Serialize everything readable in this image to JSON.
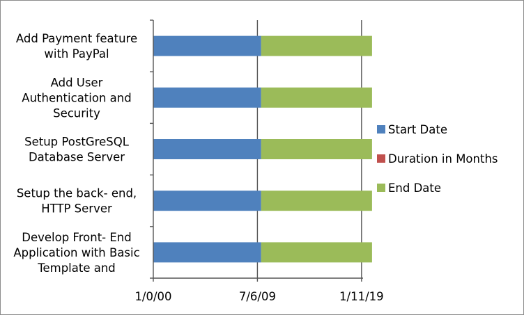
{
  "chart_data": {
    "type": "bar",
    "orientation": "horizontal",
    "stacked": true,
    "categories": [
      "Add Payment feature with PayPal",
      "Add User Authentication and Security",
      "Setup PostGreSQL Database Server",
      "Setup the back- end, HTTP Server",
      "Develop Front- End Application with Basic Template and"
    ],
    "category_lines": [
      [
        "Add Payment feature",
        "with PayPal"
      ],
      [
        "Add User",
        "Authentication and",
        "Security"
      ],
      [
        "Setup PostGreSQL",
        "Database Server"
      ],
      [
        "Setup the back- end,",
        "HTTP Server"
      ],
      [
        "Develop Front- End",
        "Application with Basic",
        "Template and"
      ]
    ],
    "series": [
      {
        "name": "Start Date",
        "color": "#4f81bd",
        "values": [
          3600,
          3600,
          3600,
          3600,
          3600
        ]
      },
      {
        "name": "Duration in Months",
        "color": "#c0504d",
        "values": [
          0,
          0,
          0,
          0,
          0
        ]
      },
      {
        "name": "End Date",
        "color": "#9bbb59",
        "values": [
          3700,
          3700,
          3700,
          3700,
          3700
        ]
      }
    ],
    "x_ticks": [
      {
        "value": 0,
        "label": "1/0/00"
      },
      {
        "value": 3475,
        "label": "7/6/09"
      },
      {
        "value": 6950,
        "label": "1/11/19"
      }
    ],
    "xlim": [
      0,
      7000
    ],
    "grid": true,
    "legend": "right"
  }
}
